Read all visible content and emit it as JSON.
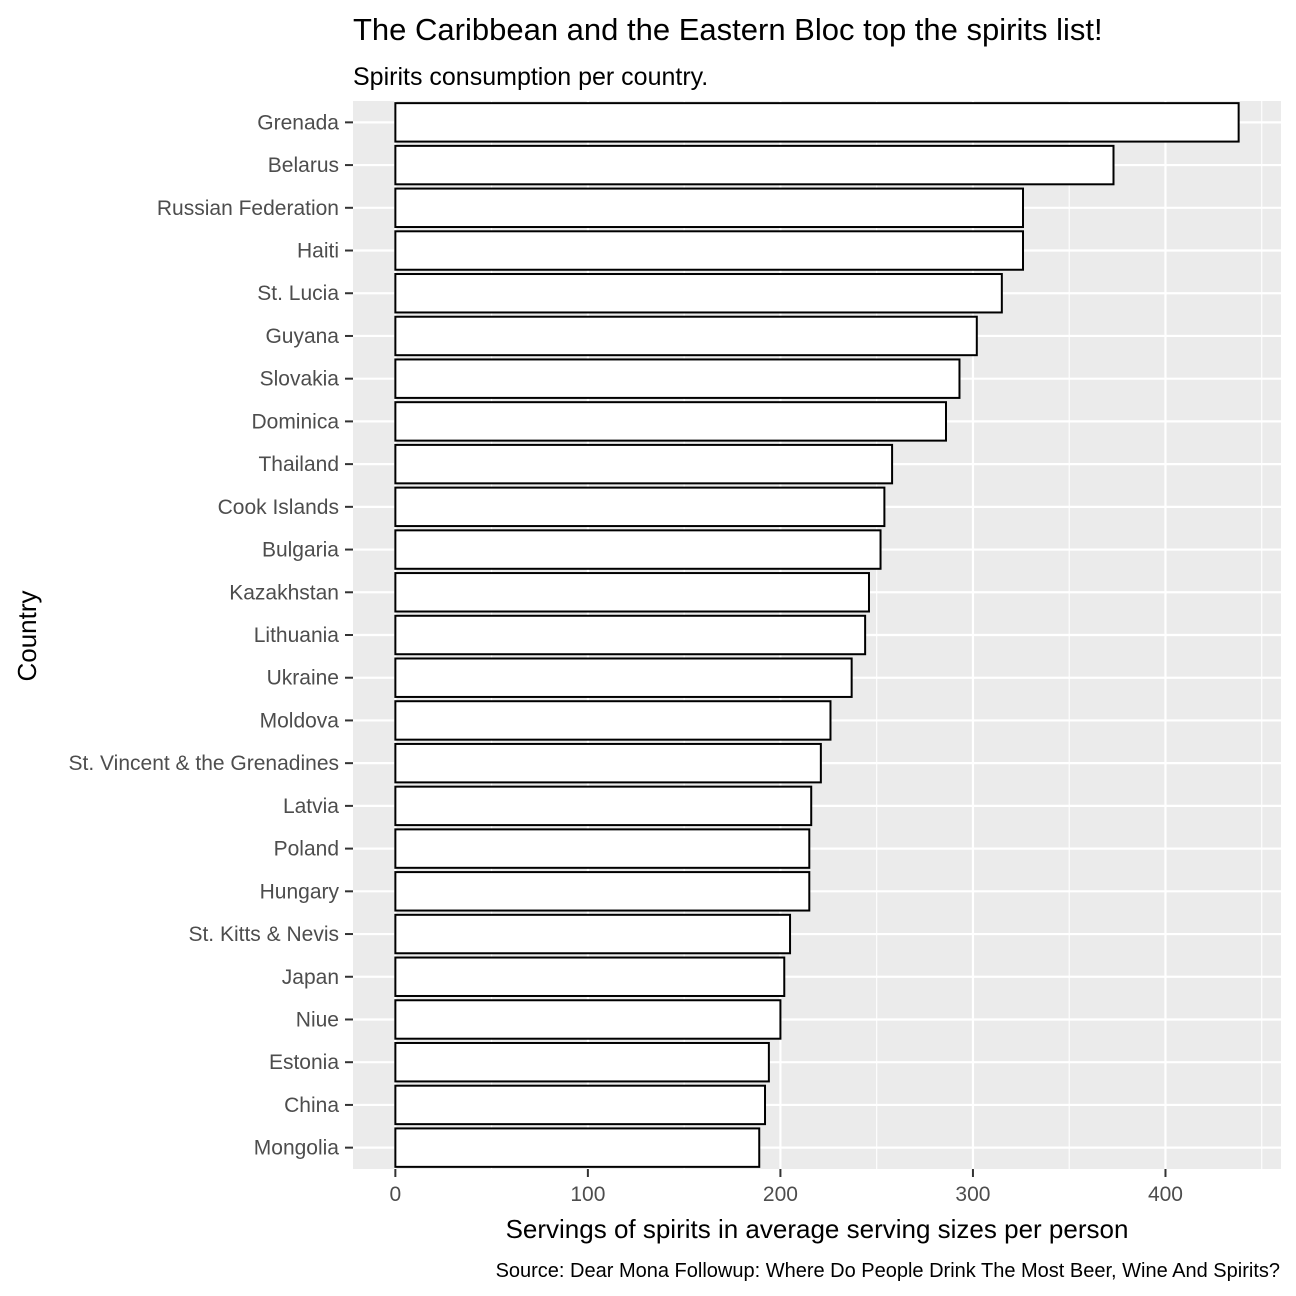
{
  "chart_data": {
    "type": "bar",
    "orientation": "horizontal",
    "title": "The Caribbean and the Eastern Bloc top the spirits list!",
    "subtitle": "Spirits consumption per country.",
    "xlabel": "Servings of spirits in average serving sizes per person",
    "ylabel": "Country",
    "caption": "Source: Dear Mona Followup: Where Do People Drink The Most Beer, Wine And Spirits?",
    "xlim": [
      -22,
      460
    ],
    "xticks": [
      0,
      100,
      200,
      300,
      400
    ],
    "xtick_labels": [
      "0",
      "100",
      "200",
      "300",
      "400"
    ],
    "grid": true,
    "bar_fill": "#ffffff",
    "bar_stroke": "#000000",
    "panel_background": "#ebebeb",
    "categories": [
      "Grenada",
      "Belarus",
      "Russian Federation",
      "Haiti",
      "St. Lucia",
      "Guyana",
      "Slovakia",
      "Dominica",
      "Thailand",
      "Cook Islands",
      "Bulgaria",
      "Kazakhstan",
      "Lithuania",
      "Ukraine",
      "Moldova",
      "St. Vincent & the Grenadines",
      "Latvia",
      "Poland",
      "Hungary",
      "St. Kitts & Nevis",
      "Japan",
      "Niue",
      "Estonia",
      "China",
      "Mongolia"
    ],
    "values": [
      438,
      373,
      326,
      326,
      315,
      302,
      293,
      286,
      258,
      254,
      252,
      246,
      244,
      237,
      226,
      221,
      216,
      215,
      215,
      205,
      202,
      200,
      194,
      192,
      189
    ]
  }
}
